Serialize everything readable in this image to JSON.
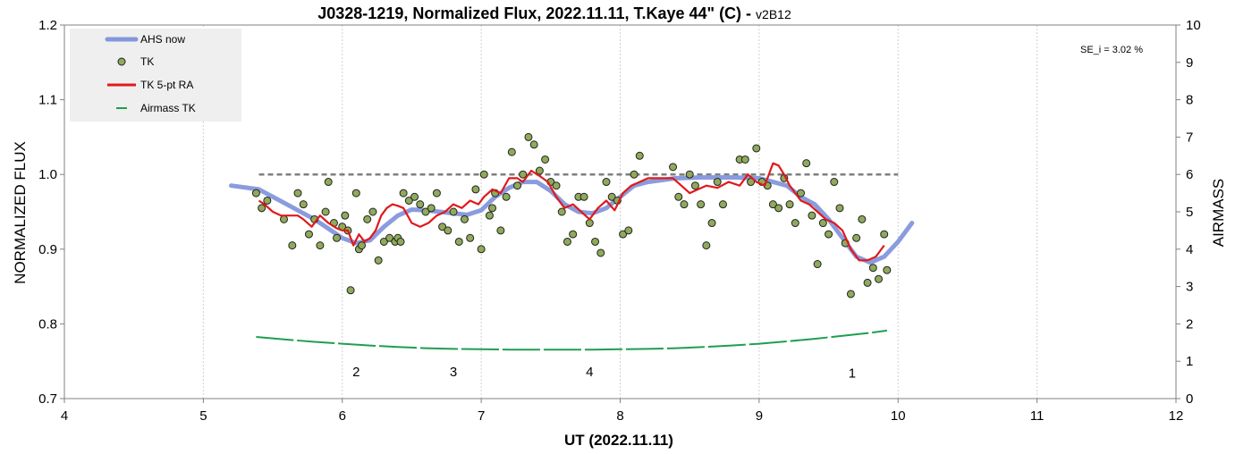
{
  "chart_data": {
    "type": "scatter",
    "title": "J0328-1219, Normalized Flux, 2022.11.11, T.Kaye 44\" (C) - ",
    "title_version": "v2B12",
    "xlabel": "UT (2022.11.11)",
    "ylabel": "NORMALIZED FLUX",
    "y2label": "AIRMASS",
    "xlim": [
      4,
      12
    ],
    "ylim": [
      0.7,
      1.2
    ],
    "y2lim": [
      0,
      10
    ],
    "x_ticks": [
      4,
      5,
      6,
      7,
      8,
      9,
      10,
      11,
      12
    ],
    "y_ticks": [
      "0.7",
      "0.8",
      "0.9",
      "1.0",
      "1.1",
      "1.2"
    ],
    "y2_ticks": [
      0,
      1,
      2,
      3,
      4,
      5,
      6,
      7,
      8,
      9,
      10
    ],
    "grid": "vertical",
    "legend_position": "top-left",
    "annotation": "SE_i = 3.02 %",
    "reference_level": 1.0,
    "segment_labels": [
      {
        "text": "2",
        "x": 6.1,
        "y": 0.73
      },
      {
        "text": "3",
        "x": 6.8,
        "y": 0.73
      },
      {
        "text": "4",
        "x": 7.78,
        "y": 0.73
      },
      {
        "text": "1",
        "x": 9.67,
        "y": 0.728
      }
    ],
    "series": [
      {
        "name": "AHS now",
        "kind": "line",
        "color": "#8497db",
        "x": [
          5.2,
          5.4,
          5.6,
          5.8,
          6.0,
          6.1,
          6.2,
          6.3,
          6.4,
          6.5,
          6.6,
          6.7,
          6.8,
          6.9,
          7.0,
          7.1,
          7.2,
          7.3,
          7.4,
          7.5,
          7.6,
          7.7,
          7.8,
          7.9,
          8.0,
          8.1,
          8.2,
          8.4,
          8.6,
          8.8,
          9.0,
          9.1,
          9.2,
          9.3,
          9.4,
          9.5,
          9.6,
          9.7,
          9.8,
          9.9,
          10.0,
          10.1
        ],
        "y": [
          0.985,
          0.98,
          0.96,
          0.94,
          0.915,
          0.908,
          0.912,
          0.93,
          0.945,
          0.953,
          0.952,
          0.95,
          0.948,
          0.946,
          0.952,
          0.97,
          0.982,
          0.99,
          0.99,
          0.978,
          0.96,
          0.95,
          0.948,
          0.955,
          0.97,
          0.985,
          0.99,
          0.995,
          0.996,
          0.996,
          0.995,
          0.99,
          0.985,
          0.97,
          0.96,
          0.94,
          0.915,
          0.89,
          0.882,
          0.89,
          0.91,
          0.935
        ]
      },
      {
        "name": "TK",
        "kind": "scatter",
        "color": "#8faa5a",
        "x": [
          5.38,
          5.42,
          5.46,
          5.58,
          5.64,
          5.68,
          5.72,
          5.76,
          5.8,
          5.84,
          5.88,
          5.9,
          5.94,
          5.96,
          6.0,
          6.02,
          6.04,
          6.06,
          6.1,
          6.12,
          6.14,
          6.18,
          6.22,
          6.26,
          6.3,
          6.34,
          6.38,
          6.4,
          6.42,
          6.44,
          6.48,
          6.52,
          6.56,
          6.6,
          6.64,
          6.68,
          6.72,
          6.76,
          6.8,
          6.84,
          6.88,
          6.92,
          6.96,
          7.0,
          7.02,
          7.06,
          7.08,
          7.1,
          7.14,
          7.18,
          7.22,
          7.26,
          7.3,
          7.34,
          7.38,
          7.42,
          7.46,
          7.5,
          7.54,
          7.58,
          7.62,
          7.66,
          7.7,
          7.74,
          7.78,
          7.82,
          7.86,
          7.9,
          7.94,
          7.98,
          8.02,
          8.06,
          8.1,
          8.14,
          8.38,
          8.42,
          8.46,
          8.5,
          8.54,
          8.58,
          8.62,
          8.66,
          8.7,
          8.74,
          8.86,
          8.9,
          8.94,
          8.98,
          9.02,
          9.06,
          9.1,
          9.14,
          9.18,
          9.22,
          9.26,
          9.3,
          9.34,
          9.38,
          9.42,
          9.46,
          9.5,
          9.54,
          9.58,
          9.62,
          9.66,
          9.7,
          9.74,
          9.78,
          9.82,
          9.86,
          9.9,
          9.92
        ],
        "y": [
          0.975,
          0.955,
          0.965,
          0.94,
          0.905,
          0.975,
          0.96,
          0.92,
          0.94,
          0.905,
          0.95,
          0.99,
          0.935,
          0.915,
          0.93,
          0.945,
          0.925,
          0.845,
          0.975,
          0.9,
          0.905,
          0.94,
          0.95,
          0.885,
          0.91,
          0.915,
          0.91,
          0.915,
          0.91,
          0.975,
          0.965,
          0.97,
          0.96,
          0.95,
          0.955,
          0.975,
          0.93,
          0.925,
          0.95,
          0.91,
          0.94,
          0.915,
          0.98,
          0.9,
          1.0,
          0.945,
          0.955,
          0.975,
          0.925,
          0.97,
          1.03,
          0.985,
          1.0,
          1.05,
          1.04,
          1.005,
          1.02,
          0.99,
          0.985,
          0.95,
          0.91,
          0.92,
          0.97,
          0.97,
          0.935,
          0.91,
          0.895,
          0.99,
          0.97,
          0.965,
          0.92,
          0.925,
          1.0,
          1.025,
          1.01,
          0.97,
          0.96,
          1.0,
          0.985,
          0.96,
          0.905,
          0.935,
          0.99,
          0.96,
          1.02,
          1.02,
          0.99,
          1.035,
          0.99,
          0.985,
          0.96,
          0.955,
          0.995,
          0.96,
          0.935,
          0.975,
          1.015,
          0.945,
          0.88,
          0.935,
          0.92,
          0.99,
          0.955,
          0.908,
          0.84,
          0.915,
          0.94,
          0.855,
          0.875,
          0.86,
          0.92,
          0.872
        ]
      },
      {
        "name": "TK 5-pt RA",
        "kind": "line",
        "color": "#e0191c",
        "x": [
          5.4,
          5.44,
          5.5,
          5.56,
          5.62,
          5.68,
          5.72,
          5.78,
          5.84,
          5.9,
          5.96,
          6.0,
          6.04,
          6.08,
          6.12,
          6.16,
          6.2,
          6.24,
          6.28,
          6.32,
          6.36,
          6.4,
          6.44,
          6.5,
          6.56,
          6.62,
          6.68,
          6.74,
          6.8,
          6.86,
          6.92,
          6.98,
          7.02,
          7.08,
          7.14,
          7.2,
          7.26,
          7.3,
          7.36,
          7.42,
          7.48,
          7.54,
          7.6,
          7.66,
          7.72,
          7.78,
          7.84,
          7.9,
          7.96,
          8.02,
          8.08,
          8.14,
          8.2,
          8.3,
          8.38,
          8.44,
          8.5,
          8.56,
          8.62,
          8.7,
          8.78,
          8.86,
          8.92,
          8.98,
          9.04,
          9.1,
          9.14,
          9.18,
          9.22,
          9.26,
          9.3,
          9.36,
          9.42,
          9.48,
          9.54,
          9.6,
          9.66,
          9.72,
          9.78,
          9.84,
          9.9
        ],
        "y": [
          0.965,
          0.96,
          0.95,
          0.945,
          0.945,
          0.945,
          0.94,
          0.93,
          0.945,
          0.935,
          0.928,
          0.925,
          0.925,
          0.905,
          0.92,
          0.91,
          0.915,
          0.925,
          0.945,
          0.955,
          0.96,
          0.958,
          0.955,
          0.935,
          0.93,
          0.935,
          0.945,
          0.95,
          0.96,
          0.955,
          0.965,
          0.96,
          0.97,
          0.98,
          0.975,
          0.995,
          0.995,
          0.99,
          1.005,
          0.998,
          0.99,
          0.97,
          0.955,
          0.96,
          0.95,
          0.94,
          0.955,
          0.965,
          0.952,
          0.975,
          0.985,
          0.99,
          0.995,
          0.995,
          0.995,
          0.985,
          0.975,
          0.98,
          0.985,
          0.982,
          0.99,
          0.985,
          1.0,
          0.99,
          0.985,
          1.015,
          1.012,
          1.0,
          0.985,
          0.975,
          0.965,
          0.96,
          0.95,
          0.94,
          0.935,
          0.925,
          0.9,
          0.885,
          0.885,
          0.89,
          0.905
        ]
      },
      {
        "name": "Airmass TK",
        "kind": "dashed-line",
        "axis": "right",
        "color": "#1f9e50",
        "x": [
          5.38,
          5.6,
          5.8,
          6.0,
          6.2,
          6.4,
          6.6,
          6.8,
          7.0,
          7.2,
          7.4,
          7.6,
          7.8,
          8.0,
          8.2,
          8.4,
          8.6,
          8.8,
          9.0,
          9.2,
          9.4,
          9.6,
          9.8,
          9.92
        ],
        "y": [
          1.65,
          1.58,
          1.52,
          1.47,
          1.42,
          1.38,
          1.35,
          1.33,
          1.32,
          1.31,
          1.31,
          1.31,
          1.31,
          1.32,
          1.33,
          1.35,
          1.38,
          1.42,
          1.47,
          1.53,
          1.6,
          1.68,
          1.76,
          1.82
        ]
      }
    ],
    "reference_color": "#7f7f7f",
    "grid_color": "#d0d0d0",
    "legend_bg": "#efefef"
  }
}
